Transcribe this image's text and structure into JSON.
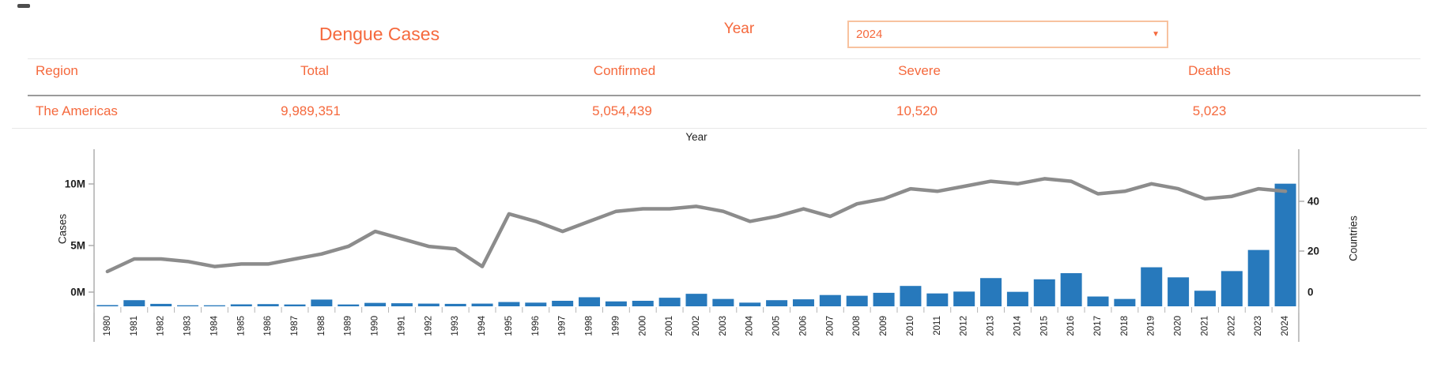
{
  "accent_color": "#F5693D",
  "header": {
    "title": "Dengue Cases",
    "year_filter": {
      "label": "Year",
      "selected_value": "2024",
      "dropdown_icon": "caret-down"
    }
  },
  "summary_table": {
    "columns": [
      "Region",
      "Total",
      "Confirmed",
      "Severe",
      "Deaths"
    ],
    "rows": [
      [
        "The Americas",
        "9,989,351",
        "5,054,439",
        "10,520",
        "5,023"
      ]
    ]
  },
  "chart_data": {
    "type": "bar",
    "subtype": "dual-axis bar + line",
    "title": "Year",
    "years": [
      "1980",
      "1981",
      "1982",
      "1983",
      "1984",
      "1985",
      "1986",
      "1987",
      "1988",
      "1989",
      "1990",
      "1991",
      "1992",
      "1993",
      "1994",
      "1995",
      "1996",
      "1997",
      "1998",
      "1999",
      "2000",
      "2001",
      "2002",
      "2003",
      "2004",
      "2005",
      "2006",
      "2007",
      "2008",
      "2009",
      "2010",
      "2011",
      "2012",
      "2013",
      "2014",
      "2015",
      "2016",
      "2017",
      "2018",
      "2019",
      "2020",
      "2021",
      "2022",
      "2023",
      "2024"
    ],
    "series": [
      {
        "name": "Cases",
        "mark": "bar",
        "axis": "left",
        "color": "#2779BC",
        "values": [
          100000,
          500000,
          200000,
          40000,
          60000,
          160000,
          180000,
          150000,
          550000,
          150000,
          280000,
          250000,
          220000,
          200000,
          220000,
          350000,
          300000,
          450000,
          740000,
          400000,
          450000,
          700000,
          1020000,
          600000,
          300000,
          500000,
          570000,
          920000,
          860000,
          1100000,
          1660000,
          1050000,
          1200000,
          2300000,
          1180000,
          2200000,
          2700000,
          800000,
          600000,
          3180000,
          2360000,
          1270000,
          2870000,
          4590000,
          9989351
        ]
      },
      {
        "name": "Countries",
        "mark": "line",
        "axis": "right",
        "color": "#8C8C8C",
        "values": [
          12,
          17,
          17,
          16,
          14,
          15,
          15,
          17,
          19,
          22,
          28,
          25,
          22,
          21,
          14,
          35,
          32,
          28,
          32,
          36,
          37,
          37,
          38,
          36,
          32,
          34,
          37,
          34,
          39,
          41,
          45,
          44,
          46,
          48,
          47,
          49,
          48,
          43,
          44,
          47,
          45,
          41,
          42,
          45,
          44
        ]
      }
    ],
    "left_axis": {
      "label": "Cases",
      "ticks": [
        "0M",
        "5M",
        "10M"
      ],
      "range_millions": [
        0,
        12.8
      ]
    },
    "right_axis": {
      "label": "Countries",
      "ticks": [
        "0",
        "20",
        "40"
      ],
      "range": [
        0,
        61
      ]
    },
    "grid": "off",
    "legend": "none"
  }
}
